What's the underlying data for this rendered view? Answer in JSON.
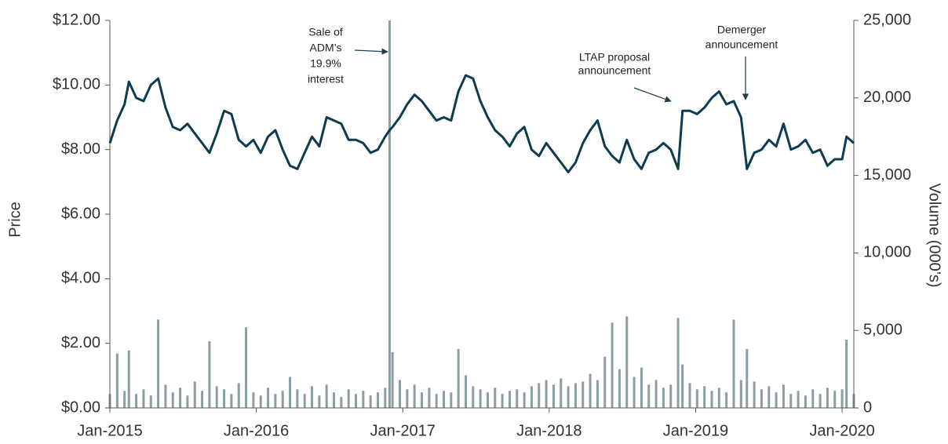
{
  "chart_data": {
    "type": "line-bar",
    "xlabel": null,
    "ylabel": "Price",
    "y2label": "Volume (000’s)",
    "x": [
      2015.0,
      2015.05,
      2015.1,
      2015.13,
      2015.18,
      2015.23,
      2015.28,
      2015.33,
      2015.38,
      2015.43,
      2015.48,
      2015.53,
      2015.58,
      2015.63,
      2015.68,
      2015.73,
      2015.78,
      2015.83,
      2015.88,
      2015.93,
      2015.98,
      2016.03,
      2016.08,
      2016.13,
      2016.18,
      2016.23,
      2016.28,
      2016.33,
      2016.38,
      2016.43,
      2016.48,
      2016.53,
      2016.58,
      2016.63,
      2016.68,
      2016.73,
      2016.78,
      2016.83,
      2016.88,
      2016.91,
      2016.93,
      2016.98,
      2017.03,
      2017.08,
      2017.13,
      2017.18,
      2017.23,
      2017.28,
      2017.33,
      2017.38,
      2017.43,
      2017.48,
      2017.53,
      2017.58,
      2017.63,
      2017.68,
      2017.73,
      2017.78,
      2017.83,
      2017.88,
      2017.93,
      2017.98,
      2018.03,
      2018.08,
      2018.13,
      2018.18,
      2018.23,
      2018.28,
      2018.33,
      2018.38,
      2018.43,
      2018.48,
      2018.53,
      2018.58,
      2018.63,
      2018.68,
      2018.73,
      2018.78,
      2018.83,
      2018.88,
      2018.91,
      2018.96,
      2019.01,
      2019.06,
      2019.11,
      2019.16,
      2019.21,
      2019.26,
      2019.31,
      2019.35,
      2019.4,
      2019.45,
      2019.5,
      2019.55,
      2019.6,
      2019.65,
      2019.7,
      2019.75,
      2019.8,
      2019.85,
      2019.9,
      2019.95,
      2020.0,
      2020.03,
      2020.08
    ],
    "series": [
      {
        "name": "Price",
        "type": "line",
        "axis": "y",
        "color": "#0d3b4f",
        "values": [
          8.2,
          8.9,
          9.4,
          10.1,
          9.6,
          9.5,
          10.0,
          10.2,
          9.3,
          8.7,
          8.6,
          8.8,
          8.5,
          8.2,
          7.9,
          8.5,
          9.2,
          9.1,
          8.3,
          8.1,
          8.3,
          7.9,
          8.4,
          8.6,
          8.0,
          7.5,
          7.4,
          7.9,
          8.4,
          8.1,
          9.0,
          8.9,
          8.8,
          8.3,
          8.3,
          8.2,
          7.9,
          8.0,
          8.4,
          8.6,
          8.7,
          9.0,
          9.4,
          9.7,
          9.5,
          9.2,
          8.9,
          9.0,
          8.9,
          9.8,
          10.3,
          10.2,
          9.5,
          9.0,
          8.6,
          8.4,
          8.1,
          8.5,
          8.7,
          8.0,
          7.8,
          8.2,
          7.9,
          7.6,
          7.3,
          7.6,
          8.2,
          8.6,
          8.9,
          8.1,
          7.8,
          7.6,
          8.3,
          7.7,
          7.4,
          7.9,
          8.0,
          8.2,
          8.0,
          7.4,
          9.2,
          9.2,
          9.1,
          9.3,
          9.6,
          9.8,
          9.4,
          9.5,
          9.0,
          7.4,
          7.9,
          8.0,
          8.3,
          8.1,
          8.8,
          8.0,
          8.1,
          8.3,
          7.9,
          8.0,
          7.5,
          7.7,
          7.7,
          8.4,
          8.2
        ]
      },
      {
        "name": "Volume",
        "type": "bar",
        "axis": "y2",
        "color": "#8a9ea3",
        "values": [
          900,
          3500,
          1100,
          3700,
          900,
          1200,
          800,
          5700,
          1500,
          1000,
          1300,
          800,
          1700,
          1100,
          4300,
          1400,
          1200,
          900,
          1600,
          5200,
          1000,
          800,
          1300,
          900,
          1100,
          2000,
          1200,
          900,
          1400,
          800,
          1500,
          1000,
          700,
          1200,
          900,
          1100,
          800,
          1000,
          1300,
          25000,
          3600,
          1800,
          1200,
          1500,
          1000,
          1300,
          900,
          1100,
          1000,
          3800,
          2100,
          1400,
          1200,
          1000,
          1300,
          900,
          1100,
          1200,
          1000,
          1400,
          1600,
          1800,
          1500,
          1900,
          1400,
          1600,
          1700,
          2200,
          1800,
          3300,
          5500,
          2500,
          5900,
          2000,
          2600,
          1500,
          1800,
          1300,
          1500,
          5800,
          2800,
          1600,
          1200,
          1400,
          1100,
          1300,
          1000,
          5700,
          1800,
          3800,
          1700,
          1200,
          1400,
          1000,
          1500,
          900,
          1100,
          800,
          1200,
          900,
          1300,
          1100,
          1200,
          4400,
          900
        ]
      }
    ],
    "xlim": [
      2015,
      2020.08
    ],
    "xticks": [
      {
        "value": 2015,
        "label": "Jan-2015"
      },
      {
        "value": 2016,
        "label": "Jan-2016"
      },
      {
        "value": 2017,
        "label": "Jan-2017"
      },
      {
        "value": 2018,
        "label": "Jan-2018"
      },
      {
        "value": 2019,
        "label": "Jan-2019"
      },
      {
        "value": 2020,
        "label": "Jan-2020"
      }
    ],
    "ylim": [
      0,
      12
    ],
    "yticks": [
      {
        "value": 0,
        "label": "$0.00"
      },
      {
        "value": 2,
        "label": "$2.00"
      },
      {
        "value": 4,
        "label": "$4.00"
      },
      {
        "value": 6,
        "label": "$6.00"
      },
      {
        "value": 8,
        "label": "$8.00"
      },
      {
        "value": 10,
        "label": "$10.00"
      },
      {
        "value": 12,
        "label": "$12.00"
      }
    ],
    "y2lim": [
      0,
      25000
    ],
    "y2ticks": [
      0,
      {
        "value": 5000,
        "label": "5,000"
      },
      {
        "value": 10000,
        "label": "10,000"
      },
      {
        "value": 15000,
        "label": "15,000"
      },
      {
        "value": 20000,
        "label": "20,000"
      },
      {
        "value": 25000,
        "label": "25,000"
      }
    ],
    "annotations": [
      {
        "lines": [
          "Sale of",
          "ADM’s",
          "19.9%",
          "interest"
        ]
      },
      {
        "lines": [
          "LTAP proposal",
          "announcement"
        ]
      },
      {
        "lines": [
          "Demerger",
          "announcement"
        ]
      }
    ]
  }
}
